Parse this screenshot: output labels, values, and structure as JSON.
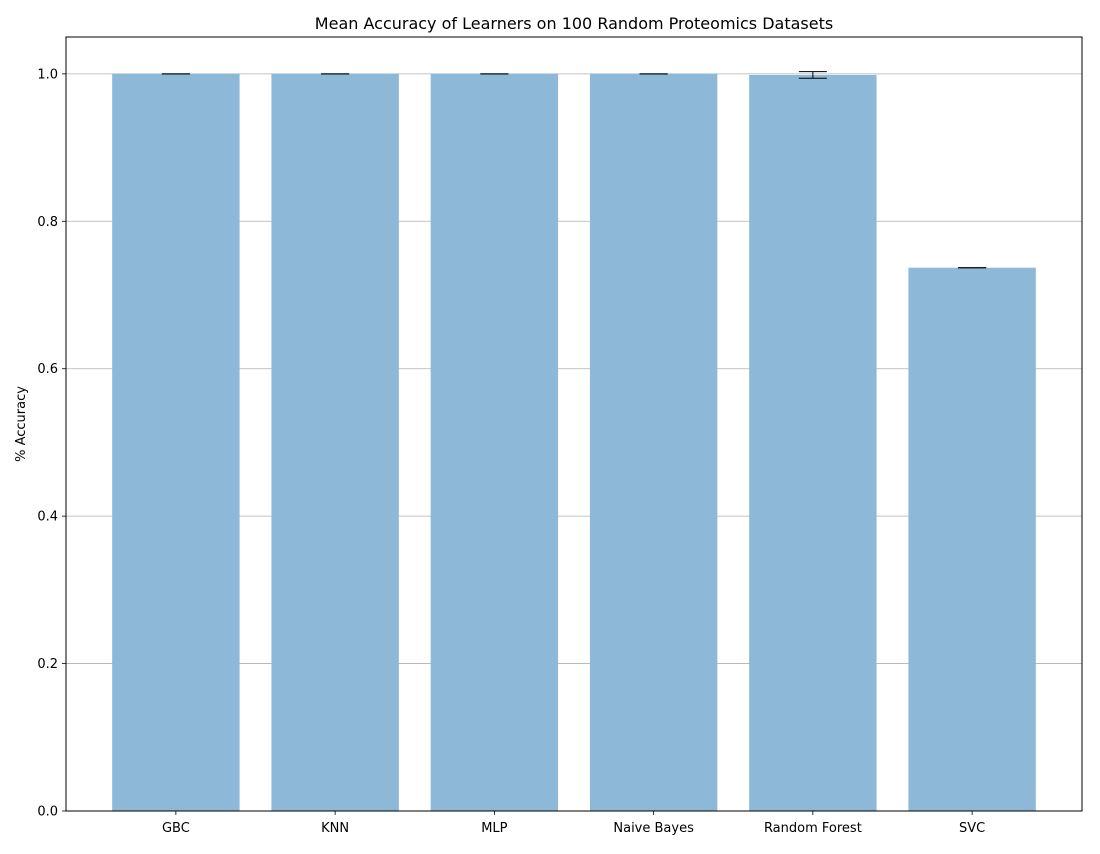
{
  "chart_data": {
    "type": "bar",
    "title": "Mean Accuracy of Learners on 100 Random Proteomics Datasets",
    "xlabel": "",
    "ylabel": "% Accuracy",
    "categories": [
      "GBC",
      "KNN",
      "MLP",
      "Naive Bayes",
      "Random Forest",
      "SVC"
    ],
    "values": [
      1.0,
      1.0,
      1.0,
      1.0,
      0.9985,
      0.737
    ],
    "errors": [
      0.0,
      0.0,
      0.0,
      0.0,
      0.0045,
      0.0
    ],
    "ylim": [
      0,
      1.05
    ],
    "yticks": [
      "0.0",
      "0.2",
      "0.4",
      "0.6",
      "0.8",
      "1.0"
    ],
    "grid": "y",
    "bar_color": "#8db8d8",
    "error_color": "#000000",
    "legend": "none"
  }
}
